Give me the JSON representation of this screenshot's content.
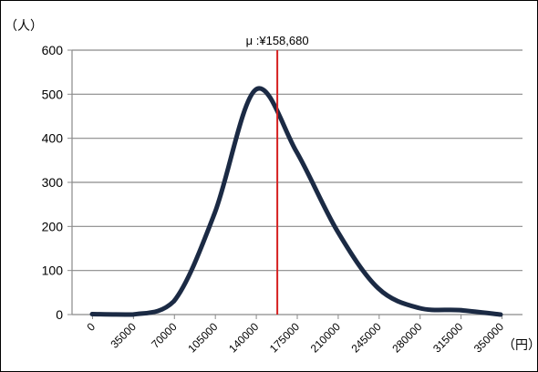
{
  "chart_data": {
    "type": "line",
    "title": "",
    "xlabel": "",
    "ylabel": "",
    "y_unit": "（人）",
    "x_unit": "（円）",
    "xlim": [
      0,
      350000
    ],
    "ylim": [
      0,
      600
    ],
    "yticks": [
      0,
      100,
      200,
      300,
      400,
      500,
      600
    ],
    "xticks": [
      "0",
      "35000",
      "70000",
      "105000",
      "140000",
      "175000",
      "210000",
      "245000",
      "280000",
      "315000",
      "350000"
    ],
    "grid": true,
    "series": [
      {
        "x": [
          0,
          35000,
          70000,
          105000,
          140000,
          175000,
          210000,
          245000,
          280000,
          315000,
          350000
        ],
        "values": [
          1,
          0,
          30,
          230,
          510,
          370,
          190,
          60,
          15,
          10,
          0
        ],
        "color": "#1b2a44"
      }
    ],
    "mean_line": {
      "value": 158680,
      "label": "μ :¥158,680",
      "color": "#d62020"
    }
  }
}
